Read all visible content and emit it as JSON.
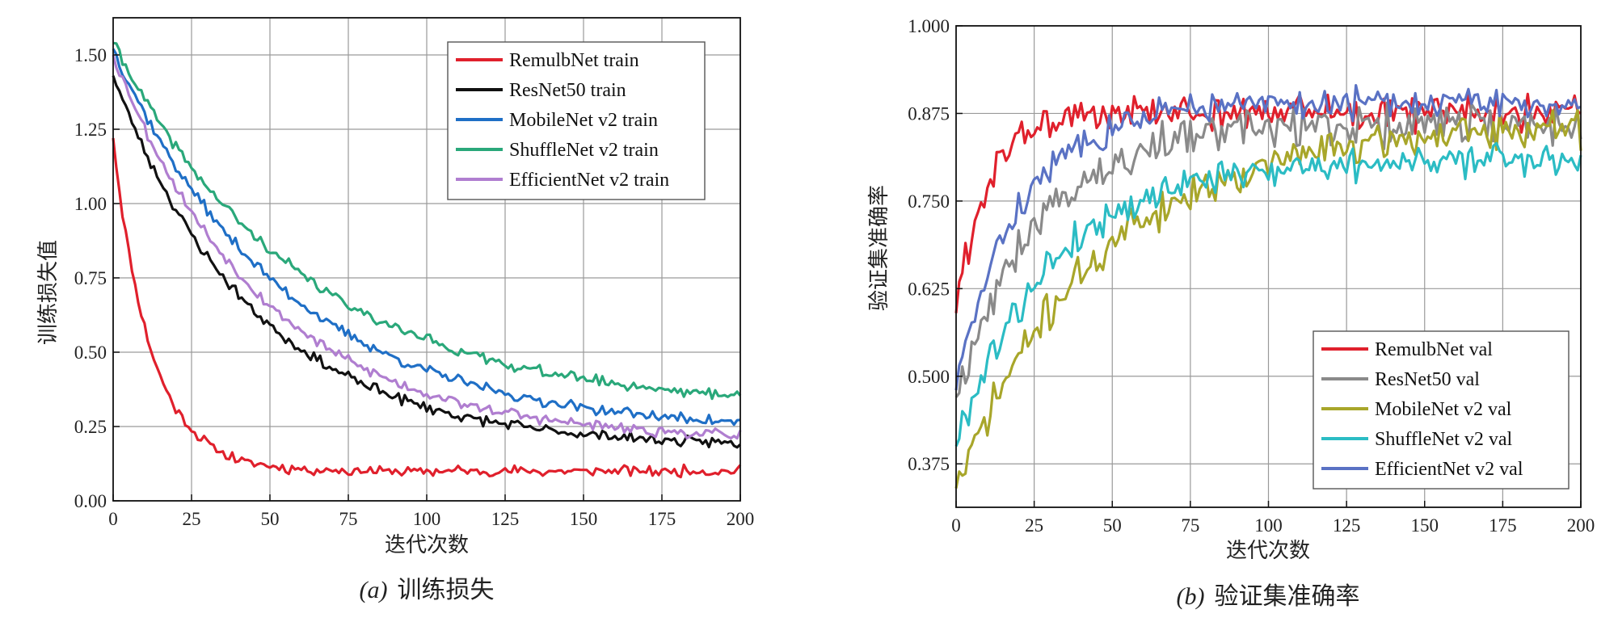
{
  "chart_data": [
    {
      "id": "a",
      "type": "line",
      "caption_letter": "a",
      "caption_text": "训练损失",
      "xlabel": "迭代次数",
      "ylabel": "训练损失值",
      "xlim": [
        0,
        200
      ],
      "ylim": [
        0,
        1.625
      ],
      "xticks": [
        0,
        25,
        50,
        75,
        100,
        125,
        150,
        175,
        200
      ],
      "xtick_labels": [
        "0",
        "25",
        "50",
        "75",
        "100",
        "125",
        "150",
        "175",
        "200"
      ],
      "yticks": [
        0,
        0.25,
        0.5,
        0.75,
        1.0,
        1.25,
        1.5
      ],
      "ytick_labels": [
        "0.00",
        "0.25",
        "0.50",
        "0.75",
        "1.00",
        "1.25",
        "1.50"
      ],
      "grid": true,
      "legend_position": "top-right",
      "series": [
        {
          "name": "RemulbNet train",
          "color": "#e0202c",
          "start": 1.22,
          "end": 0.1,
          "tau": 12,
          "noise": 0.012,
          "seed": 11
        },
        {
          "name": "ResNet50 train",
          "color": "#111111",
          "start": 1.43,
          "end": 0.18,
          "tau": 45,
          "noise": 0.012,
          "seed": 23
        },
        {
          "name": "MobileNet v2 train",
          "color": "#1f6fc6",
          "start": 1.52,
          "end": 0.23,
          "tau": 55,
          "noise": 0.012,
          "seed": 37
        },
        {
          "name": "ShuffleNet v2 train",
          "color": "#2aa87a",
          "start": 1.54,
          "end": 0.31,
          "tau": 60,
          "noise": 0.012,
          "seed": 41
        },
        {
          "name": "EfficientNet v2 train",
          "color": "#b07ed0",
          "start": 1.5,
          "end": 0.2,
          "tau": 48,
          "noise": 0.012,
          "seed": 53
        }
      ]
    },
    {
      "id": "b",
      "type": "line",
      "caption_letter": "b",
      "caption_text": "验证集准确率",
      "xlabel": "迭代次数",
      "ylabel": "验证集准确率",
      "xlim": [
        0,
        200
      ],
      "ylim": [
        0.313,
        1.0
      ],
      "xticks": [
        0,
        25,
        50,
        75,
        100,
        125,
        150,
        175,
        200
      ],
      "xtick_labels": [
        "0",
        "25",
        "50",
        "75",
        "100",
        "125",
        "150",
        "175",
        "200"
      ],
      "yticks": [
        0.375,
        0.5,
        0.625,
        0.75,
        0.875,
        1.0
      ],
      "ytick_labels": [
        "0.375",
        "0.500",
        "0.625",
        "0.750",
        "0.875",
        "1.000"
      ],
      "grid": true,
      "legend_position": "bottom-right",
      "series": [
        {
          "name": "RemulbNet val",
          "color": "#e0202c",
          "start": 0.59,
          "end": 0.875,
          "tau": 10,
          "noise": 0.018,
          "seed": 61
        },
        {
          "name": "ResNet50 val",
          "color": "#8a8a8a",
          "start": 0.47,
          "end": 0.86,
          "tau": 25,
          "noise": 0.02,
          "seed": 67
        },
        {
          "name": "MobileNet v2 val",
          "color": "#a8a62a",
          "start": 0.34,
          "end": 0.86,
          "tau": 45,
          "noise": 0.018,
          "seed": 71
        },
        {
          "name": "ShuffleNet v2 val",
          "color": "#2bbcc4",
          "start": 0.4,
          "end": 0.81,
          "tau": 30,
          "noise": 0.016,
          "seed": 79
        },
        {
          "name": "EfficientNet v2 val",
          "color": "#5a72c4",
          "start": 0.48,
          "end": 0.89,
          "tau": 20,
          "noise": 0.016,
          "seed": 83
        }
      ]
    }
  ]
}
